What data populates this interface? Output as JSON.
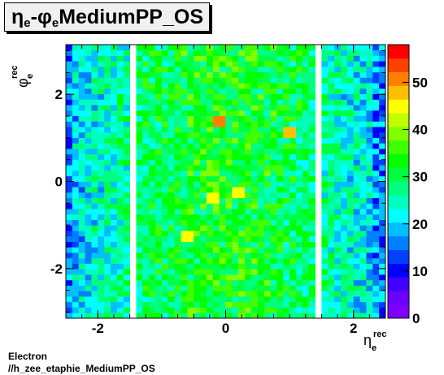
{
  "title": {
    "eta_sym": "η",
    "sub_e1": "e",
    "dash": "-",
    "phi_sym": "φ",
    "sub_e2": "e",
    "name": " MediumPP_OS"
  },
  "footer": {
    "line1": "Electron",
    "line2": "//h_zee_etaphie_MediumPP_OS"
  },
  "chart_data": {
    "type": "heatmap",
    "xlabel": {
      "sym": "η",
      "sup": "rec",
      "sub": "e"
    },
    "ylabel": {
      "sym": "φ",
      "sup": "rec",
      "sub": "e"
    },
    "xlim": [
      -2.5,
      2.5
    ],
    "ylim": [
      -3.14,
      3.14
    ],
    "zlim": [
      0,
      58
    ],
    "x_ticks": [
      -2,
      0,
      2
    ],
    "y_ticks": [
      -2,
      0,
      2
    ],
    "z_ticks": [
      0,
      10,
      20,
      30,
      40,
      50
    ],
    "x_bins": 50,
    "y_bins": 50,
    "colormap": [
      "#7f00ff",
      "#6a00ff",
      "#4000ff",
      "#0000ff",
      "#0040ff",
      "#0080ff",
      "#00bfff",
      "#00ffff",
      "#00ffbf",
      "#00ff80",
      "#00ff40",
      "#00ff00",
      "#40ff00",
      "#80ff00",
      "#bfff00",
      "#ffff00",
      "#ffbf00",
      "#ff8000",
      "#ff4000",
      "#ff0000"
    ],
    "empty_eta_bands": [
      [
        -1.52,
        -1.37
      ],
      [
        1.37,
        1.52
      ]
    ],
    "profile_description": "occupancy highest near eta 0 (~30-38), lower toward |eta| 2.5 (~15-22); hot cells ~50 near (-0.1, 1.35) and (1.0, 1.1)",
    "hot_cells": [
      {
        "x": -0.1,
        "y": 1.35,
        "value": 50
      },
      {
        "x": 1.0,
        "y": 1.1,
        "value": 49
      },
      {
        "x": 0.2,
        "y": -0.3,
        "value": 46
      },
      {
        "x": -0.2,
        "y": -0.4,
        "value": 44
      },
      {
        "x": -0.6,
        "y": -1.2,
        "value": 44
      }
    ]
  }
}
